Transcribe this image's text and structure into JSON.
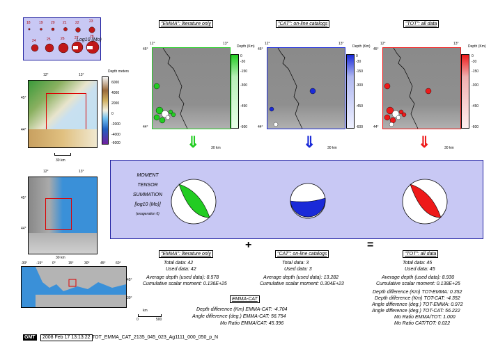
{
  "legend": {
    "scale_label": "Log10 (Mo)",
    "magnitudes_row1": [
      "18",
      "19",
      "20",
      "21",
      "22",
      "23"
    ],
    "magnitudes_row2": [
      "24",
      "25",
      "26",
      "27",
      "28"
    ]
  },
  "top_labels": {
    "emma": "\"EMMA\": literature only",
    "cat": "\"CAT\": on-line catalogs",
    "tot": "\"TOT\": all data"
  },
  "map_ticks": {
    "lon_left": "12°",
    "lon_right": "13°",
    "lat_top": "45°",
    "lat_bottom": "44°",
    "scale_30": "30 km",
    "depth_label": "Depth (Km)",
    "depth_values": [
      "0",
      "-30",
      "-150",
      "-300",
      "-450",
      "-600"
    ]
  },
  "topo": {
    "title": "Depth meters",
    "values": [
      "6000",
      "4000",
      "2000",
      "0",
      "-2000",
      "-4000",
      "-6000"
    ],
    "lon1": "12°",
    "lon2": "13°",
    "lat1": "45°",
    "lat2": "44°",
    "scale": "30 km"
  },
  "europe": {
    "lon_labels": [
      "-30°",
      "-15°",
      "0°",
      "15°",
      "30°",
      "45°",
      "60°"
    ],
    "lat_labels": [
      "45°",
      "30°"
    ],
    "scale_km": "km",
    "scale_0": "0",
    "scale_500": "500"
  },
  "summation": {
    "line1": "MOMENT",
    "line2": "TENSOR",
    "line3": "SUMMATION",
    "line4": "[log10 (Mo)]",
    "line5": "(exageration 6)"
  },
  "operators": {
    "plus": "+",
    "equals": "="
  },
  "stats_emma": {
    "title": "\"EMMA\": literature only",
    "total": "Total data:  42",
    "used": "Used data:  42",
    "avg": "Average depth (used data):    8.578",
    "cum": "Cumulative scalar moment: 0.136E+25"
  },
  "stats_cat": {
    "title": "\"CAT\": on-line catalogs",
    "total": "Total data:   3",
    "used": "Used data:   3",
    "avg": "Average depth (used data):   13.282",
    "cum": "Cumulative scalar moment: 0.304E+23"
  },
  "stats_tot": {
    "title": "\"TOT\": all data",
    "total": "Total data:  45",
    "used": "Used data:  45",
    "avg": "Average depth (used data):    8.930",
    "cum": "Cumulative scalar moment: 0.138E+25",
    "d1": "Depth difference (Km) TOT-EMMA:    0.352",
    "d2": "Depth difference (Km) TOT-CAT:   -4.352",
    "a1": "Angle difference (deg.) TOT-EMMA:    0.972",
    "a2": "Angle difference (deg.) TOT-CAT:   56.222",
    "r1": "Mo Ratio EMMA/TOT:    1.000",
    "r2": "Mo Ratio CAT/TOT:    0.022"
  },
  "emma_cat": {
    "title": "EMMA-CAT",
    "depth": "Depth difference (Km) EMMA-CAT:   -4.704",
    "angle": "Angle difference (deg.) EMMA-CAT:   56.754",
    "ratio": "Mo Ratio EMMA/CAT:   45.396"
  },
  "footer": {
    "logo": "GMT",
    "date": "2008 Feb 17 13:13:22",
    "file": "TOT_EMMA_CAT_2135_045_023_Ag1111_000_050_p_N"
  },
  "colors": {
    "emma": "#22cc22",
    "cat": "#1a2ad8",
    "tot": "#ee1a1a",
    "panel": "#c8c8f4"
  }
}
